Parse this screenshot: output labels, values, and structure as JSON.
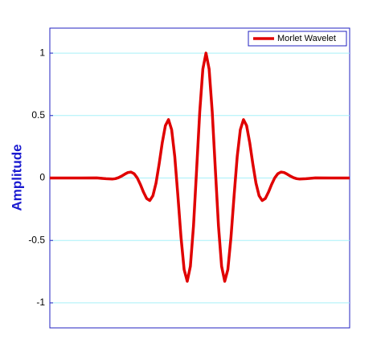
{
  "chart_data": {
    "type": "line",
    "y_label": "Amplitude",
    "x": [
      -5,
      -4,
      -3.5,
      -3.2,
      -3.0,
      -2.9,
      -2.8,
      -2.7,
      -2.6,
      -2.5,
      -2.4,
      -2.3,
      -2.2,
      -2.1,
      -2.0,
      -1.9,
      -1.8,
      -1.7,
      -1.6,
      -1.5,
      -1.4,
      -1.3,
      -1.2,
      -1.1,
      -1.0,
      -0.9,
      -0.8,
      -0.7,
      -0.6,
      -0.5,
      -0.4,
      -0.3,
      -0.2,
      -0.1,
      0,
      0.1,
      0.2,
      0.3,
      0.4,
      0.5,
      0.6,
      0.7,
      0.8,
      0.9,
      1.0,
      1.1,
      1.2,
      1.3,
      1.4,
      1.5,
      1.6,
      1.7,
      1.8,
      1.9,
      2.0,
      2.1,
      2.2,
      2.3,
      2.4,
      2.5,
      2.6,
      2.7,
      2.8,
      2.9,
      3.0,
      3.2,
      3.5,
      4.0,
      4.6
    ],
    "series": [
      {
        "name": "Morlet Wavelet",
        "color": "#e00000",
        "values": [
          0,
          0,
          0.0005,
          -0.0057,
          -0.0084,
          -0.0053,
          0.0027,
          0.0155,
          0.0309,
          0.0438,
          0.0474,
          0.0343,
          0.0004,
          -0.0524,
          -0.1136,
          -0.164,
          -0.1803,
          -0.1419,
          -0.0405,
          0.1125,
          0.2829,
          0.4195,
          0.4674,
          0.387,
          0.1721,
          -0.1406,
          -0.4746,
          -0.733,
          -0.8269,
          -0.707,
          -0.3842,
          0.0676,
          0.5296,
          0.8732,
          1,
          0.8732,
          0.5296,
          0.0676,
          -0.3842,
          -0.707,
          -0.8269,
          -0.733,
          -0.4746,
          -0.1406,
          0.1721,
          0.387,
          0.4674,
          0.4195,
          0.2829,
          0.1125,
          -0.0405,
          -0.1419,
          -0.1803,
          -0.164,
          -0.1136,
          -0.0524,
          0.0004,
          0.0343,
          0.0474,
          0.0438,
          0.0309,
          0.0155,
          0.0027,
          -0.0053,
          -0.0084,
          -0.0057,
          0.0005,
          0,
          0
        ]
      }
    ],
    "xlim": [
      -5,
      4.6
    ],
    "ylim": [
      -1.2,
      1.2
    ],
    "yticks": [
      -1,
      -0.5,
      0,
      0.5,
      1
    ],
    "grid": true,
    "legend": "upper-right"
  }
}
